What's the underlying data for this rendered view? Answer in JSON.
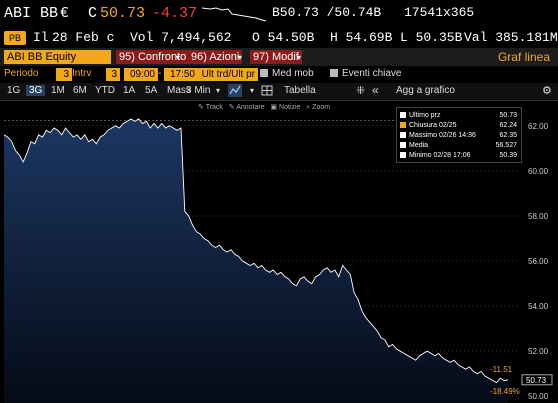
{
  "header": {
    "ticker": "ABI BB",
    "currency": "€",
    "price_label": "C",
    "price": "50.73",
    "change": "-4.37",
    "bid_ask": "B50.73 /50.74B",
    "size": "17541x365",
    "badge": "PB",
    "info_prefix": "Il",
    "date": "28 Feb c",
    "volume": "Vol 7,494,562",
    "open": "O 54.50B",
    "high": "H 54.69B",
    "low": "L 50.35B",
    "value": "Val 385.181M"
  },
  "toolbar": {
    "security": "ABI BB Equity",
    "btn_compare": "95) Confronto",
    "btn_actions": "96) Azioni",
    "btn_modify": "97) Modif",
    "title_right": "Graf linea"
  },
  "params": {
    "period_label": "Periodo",
    "period_value": "3",
    "interval_label": "Intrv",
    "interval_value": "3",
    "time_start": "09:00",
    "time_end": "17:50",
    "last_trade": "Ult trd/Ult pr",
    "mid_label": "Med mob",
    "events_label": "Eventi chiave"
  },
  "ranges": {
    "items": [
      "1G",
      "3G",
      "1M",
      "6M",
      "YTD",
      "1A",
      "5A",
      "Mass"
    ],
    "active": "3G",
    "interval_select": "3 Min",
    "table_label": "Tabella",
    "add_label": "Agg a grafico"
  },
  "tools": {
    "track": "Track",
    "annotate": "Annotare",
    "news": "Notizie",
    "zoom": "Zoom"
  },
  "legend": {
    "items": [
      {
        "label": "Ultimo prz",
        "value": "50.73",
        "color": "#ffffff"
      },
      {
        "label": "Chiusura 02/25",
        "value": "62.24",
        "color": "#f3a81b"
      },
      {
        "label": "Massimo 02/26 14:36",
        "value": "62.35",
        "color": "#ffffff"
      },
      {
        "label": "Media",
        "value": "56.527",
        "color": "#ffffff"
      },
      {
        "label": "Minimo 02/28 17:06",
        "value": "50.39",
        "color": "#ffffff"
      }
    ]
  },
  "colors": {
    "amber": "#f3a81b",
    "red": "#ff3b3b",
    "area_top": "#1c3763",
    "area_bottom": "#050b16",
    "line": "#ffffff"
  },
  "chart_data": {
    "type": "area",
    "ylim": [
      49.7,
      63.1
    ],
    "y_ticks": [
      "50.00",
      "52.00",
      "54.00",
      "56.00",
      "58.00",
      "60.00",
      "62.00"
    ],
    "reference_line": 62.24,
    "last_price_label": "50.73",
    "change_label": "-11.51",
    "change_pct_label": "-18.49%",
    "values": [
      61.6,
      61.5,
      61.3,
      60.9,
      60.7,
      60.4,
      60.8,
      61.3,
      61.2,
      61.6,
      61.5,
      61.8,
      61.7,
      61.9,
      61.8,
      61.6,
      61.9,
      61.7,
      61.5,
      61.6,
      61.4,
      61.6,
      61.3,
      61.4,
      61.2,
      61.5,
      61.6,
      61.8,
      61.9,
      62.0,
      61.9,
      62.1,
      62.2,
      62.3,
      62.2,
      62.3,
      62.1,
      62.2,
      61.9,
      62.1,
      61.9,
      62.1,
      61.9,
      62.0,
      61.9,
      61.8,
      61.9,
      58.2,
      58.0,
      57.6,
      57.3,
      57.2,
      57.0,
      56.9,
      56.7,
      56.6,
      56.7,
      56.5,
      56.4,
      56.5,
      56.3,
      56.2,
      56.0,
      55.9,
      55.8,
      55.9,
      55.7,
      55.8,
      55.6,
      55.5,
      55.6,
      55.4,
      55.5,
      55.3,
      55.2,
      55.0,
      54.9,
      55.2,
      55.3,
      55.1,
      55.0,
      55.3,
      55.4,
      55.6,
      55.7,
      55.5,
      55.6,
      55.3,
      55.8,
      55.6,
      55.4,
      54.6,
      54.3,
      53.8,
      53.5,
      53.3,
      53.1,
      52.9,
      52.6,
      52.5,
      52.2,
      52.3,
      52.1,
      52.0,
      51.9,
      51.8,
      51.7,
      51.6,
      51.8,
      51.9,
      52.0,
      51.9,
      51.8,
      51.9,
      51.7,
      51.6,
      51.5,
      51.6,
      51.4,
      51.3,
      51.2,
      51.3,
      51.1,
      51.0,
      51.1,
      50.9,
      50.8,
      50.7,
      50.6,
      50.8,
      50.7,
      50.73
    ]
  }
}
